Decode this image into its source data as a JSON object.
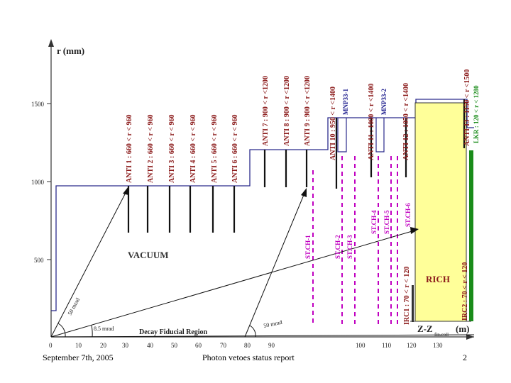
{
  "footer": {
    "date": "September 7th, 2005",
    "title": "Photon vetoes status report",
    "page": "2"
  },
  "colors": {
    "vacuum_line": "#2b2b8c",
    "anti_text": "#8b1a1a",
    "mnp_text": "#1a1a8c",
    "st_ch": "#c000c0",
    "rich_fill": "#ffff99",
    "lkr_green": "#1a8c1a"
  },
  "axes": {
    "y_label": "r (mm)",
    "y_ticks": [
      "1500",
      "1000",
      "500"
    ],
    "x_label": "Z-Z",
    "x_label_sub": "fin.coll",
    "x_unit": "(m)",
    "x_ticks": [
      "0",
      "10",
      "20",
      "30",
      "40",
      "50",
      "60",
      "70",
      "80",
      "90",
      "100",
      "110",
      "120",
      "130"
    ]
  },
  "regions": {
    "vacuum": "VACUUM",
    "rich": "RICH",
    "fiducial": "Decay Fiducial Region"
  },
  "angles": {
    "a1": "50 mrad",
    "a2": "8.5 mrad",
    "a3": "50 mrad"
  },
  "antis": [
    "ANTI 1 : 660 < r < 960",
    "ANTI 2 : 660 < r < 960",
    "ANTI 3 : 660 < r < 960",
    "ANTI 4 : 660 < r < 960",
    "ANTI 5 : 660 < r < 960",
    "ANTI 6 : 660 < r < 960",
    "ANTI 7 : 900 < r <1200",
    "ANTI 8 : 900 < r <1200",
    "ANTI 9 : 900 < r <1200",
    "ANTI 10 : 950 < r <1400",
    "ANTI 11 : 1000 < r <1400",
    "ANTI 12 : 1050 < r <1400",
    "ANTI 13 : 1150 < r <1500"
  ],
  "mnp": [
    "MNP33-1",
    "MNP33-2"
  ],
  "lkr": "LKR : 120 < r < 1280",
  "st_ch": [
    "ST.CH-1",
    "ST.CH-2",
    "ST.CH-3",
    "ST.CH-4",
    "ST.CH-5",
    "ST.CH-6"
  ],
  "irc": [
    "IRC1 : 70 < r < 120",
    "IRC2 : 70 < r < 120"
  ]
}
